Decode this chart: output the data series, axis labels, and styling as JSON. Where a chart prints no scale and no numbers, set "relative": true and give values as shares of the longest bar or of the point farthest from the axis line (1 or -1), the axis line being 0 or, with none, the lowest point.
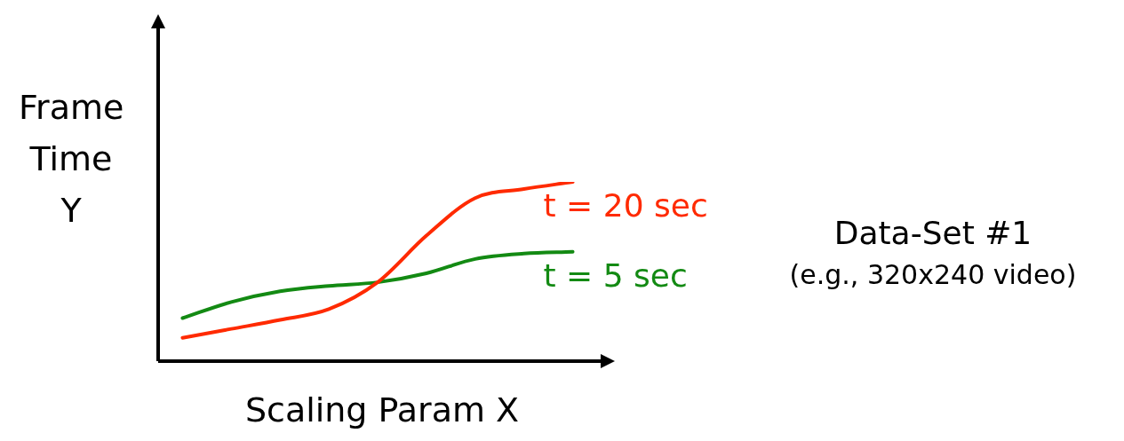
{
  "chart_data": {
    "type": "line",
    "relative": true,
    "xlabel": "Scaling Param X",
    "ylabel": "Frame Time Y",
    "categories": [
      null,
      null,
      null,
      null,
      null,
      null,
      null,
      null,
      null
    ],
    "series": [
      {
        "name": "t = 20 sec",
        "color": "#ff2a00",
        "values": [
          0.13,
          0.18,
          0.23,
          0.29,
          0.44,
          0.7,
          0.91,
          0.96,
          1
        ]
      },
      {
        "name": "t = 5 sec",
        "color": "#138a13",
        "values": [
          0.24,
          0.33,
          0.39,
          0.42,
          0.44,
          0.49,
          0.57,
          0.6,
          0.61
        ]
      }
    ],
    "annotations": [
      "Data-Set #1",
      "(e.g., 320x240 video)"
    ],
    "legend": false,
    "marker": "none",
    "line_style": "solid"
  }
}
